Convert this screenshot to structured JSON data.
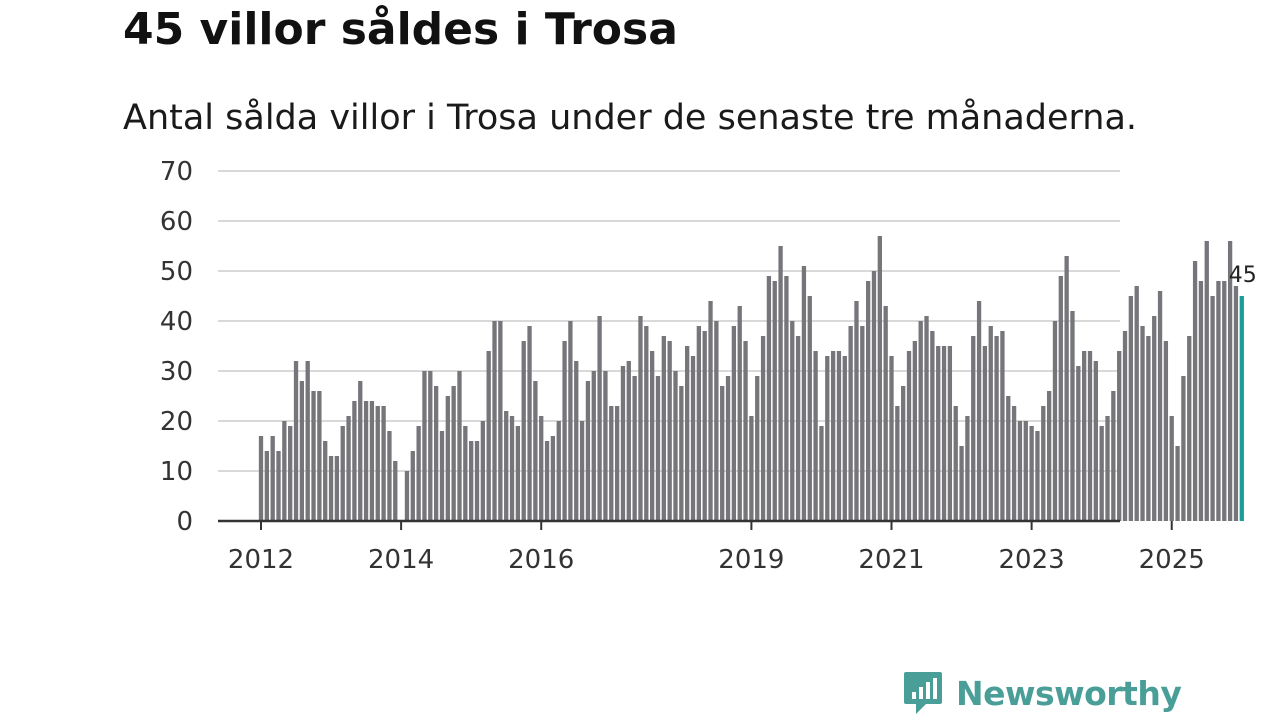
{
  "title": "45 villor såldes i Trosa",
  "subtitle": "Antal sålda villor i Trosa under de senaste tre månaderna.",
  "brand": {
    "name": "Newsworthy",
    "icon": "newsworthy-logo-icon",
    "color": "#4a9e98"
  },
  "colors": {
    "bar": "#75757a",
    "highlight": "#1a9e98",
    "grid": "#d9d9d9",
    "axis": "#333333"
  },
  "chart_data": {
    "type": "bar",
    "title": "45 villor såldes i Trosa",
    "xlabel": "",
    "ylabel": "",
    "ylim": [
      0,
      70
    ],
    "yticks": [
      "0",
      "10",
      "20",
      "30",
      "40",
      "50",
      "60",
      "70"
    ],
    "xticks": [
      {
        "label": "2012",
        "index": 0
      },
      {
        "label": "2014",
        "index": 24
      },
      {
        "label": "2016",
        "index": 48
      },
      {
        "label": "2019",
        "index": 84
      },
      {
        "label": "2021",
        "index": 108
      },
      {
        "label": "2023",
        "index": 132
      },
      {
        "label": "2025",
        "index": 156
      }
    ],
    "start": "2012-01",
    "values": [
      17,
      14,
      17,
      14,
      20,
      19,
      32,
      28,
      32,
      26,
      26,
      16,
      13,
      13,
      19,
      21,
      24,
      28,
      24,
      24,
      23,
      23,
      18,
      12,
      null,
      10,
      14,
      19,
      30,
      30,
      27,
      18,
      25,
      27,
      30,
      19,
      16,
      16,
      20,
      34,
      40,
      40,
      22,
      21,
      19,
      36,
      39,
      28,
      21,
      16,
      17,
      20,
      36,
      40,
      32,
      20,
      28,
      30,
      41,
      30,
      23,
      23,
      31,
      32,
      29,
      41,
      39,
      34,
      29,
      37,
      36,
      30,
      27,
      35,
      33,
      39,
      38,
      44,
      40,
      27,
      29,
      39,
      43,
      36,
      21,
      29,
      37,
      49,
      48,
      55,
      49,
      40,
      37,
      51,
      45,
      34,
      19,
      33,
      34,
      34,
      33,
      39,
      44,
      39,
      48,
      50,
      57,
      43,
      33,
      23,
      27,
      34,
      36,
      40,
      41,
      38,
      35,
      35,
      35,
      23,
      15,
      21,
      37,
      44,
      35,
      39,
      37,
      38,
      25,
      23,
      20,
      20,
      19,
      18,
      23,
      26,
      40,
      49,
      53,
      42,
      31,
      34,
      34,
      32,
      19,
      21,
      26,
      34,
      38,
      45,
      47,
      39,
      37,
      41,
      46,
      36,
      21,
      15,
      29,
      37,
      52,
      48,
      56,
      45,
      48,
      48,
      56,
      47,
      45
    ],
    "highlight_last": true,
    "data_label": "45"
  }
}
